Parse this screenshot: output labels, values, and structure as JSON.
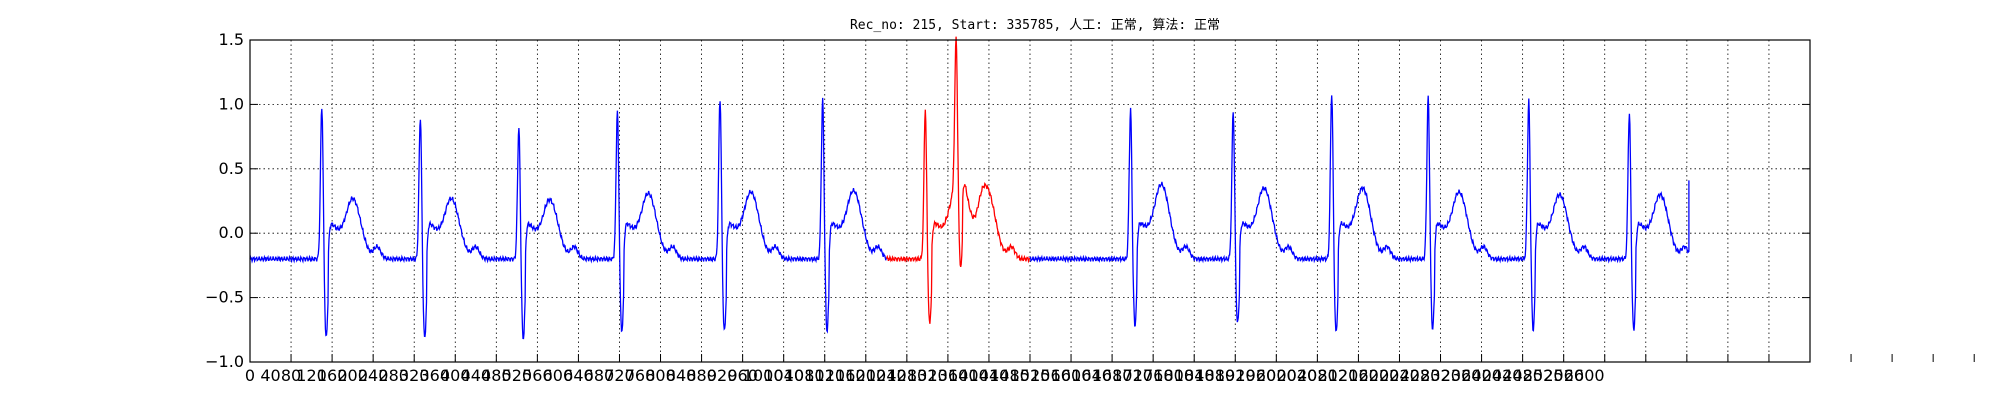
{
  "chart_data": {
    "type": "line",
    "title": "Rec_no: 215, Start: 335785, 人工: 正常, 算法: 正常",
    "xlabel": "",
    "ylabel": "",
    "xlim": [
      0,
      1520
    ],
    "ylim": [
      -1.0,
      1.5
    ],
    "grid": true,
    "grid_style": "dotted",
    "legend": "none",
    "yticks": [
      "1.5",
      "1.0",
      "0.5",
      "0.0",
      "−0.5",
      "−1.0"
    ],
    "ytick_values": [
      1.5,
      1.0,
      0.5,
      0.0,
      -0.5,
      -1.0
    ],
    "xticks": [
      "0",
      "40",
      "80",
      "120",
      "160",
      "200",
      "240",
      "280",
      "320",
      "360",
      "400",
      "440",
      "480",
      "520",
      "560",
      "600",
      "640",
      "680",
      "720",
      "760",
      "800",
      "840",
      "880",
      "920",
      "960",
      "1000",
      "1040",
      "1080",
      "1120",
      "1160",
      "1200",
      "1240",
      "1280",
      "1320",
      "1360",
      "1400",
      "1440",
      "1480",
      "1520",
      "1560",
      "1600",
      "1640",
      "1680",
      "1720",
      "1760",
      "1800",
      "1840",
      "1880",
      "1920",
      "1960",
      "2000",
      "2040",
      "2080",
      "2120",
      "2160",
      "2200",
      "2240",
      "2280",
      "2320",
      "2360",
      "2400",
      "2440",
      "2480",
      "2520",
      "2560",
      "2600"
    ],
    "xtick_values": [
      0,
      40,
      80,
      120,
      160,
      200,
      240,
      280,
      320,
      360,
      400,
      440,
      480,
      520,
      560,
      600,
      640,
      680,
      720,
      760,
      800,
      840,
      880,
      920,
      960,
      1000,
      1040,
      1080,
      1120,
      1160,
      1200,
      1240,
      1280,
      1320,
      1360,
      1400,
      1440,
      1480,
      1520,
      1560,
      1600,
      1640,
      1680,
      1720,
      1760,
      1800,
      1840,
      1880,
      1920,
      1960,
      2000,
      2040,
      2080,
      2120,
      2160,
      2200,
      2240,
      2280,
      2320,
      2360,
      2400,
      2440,
      2480,
      2520,
      2560,
      2600
    ],
    "series": [
      {
        "color": "#0000ff",
        "beats_r_peak_x": [
          70,
          166,
          262,
          358,
          458,
          558,
          658,
          858,
          958,
          1054,
          1148,
          1246,
          1344
        ],
        "r_peak_values": [
          1.0,
          0.92,
          0.85,
          0.97,
          1.06,
          1.06,
          0.98,
          0.98,
          0.97,
          1.1,
          1.08,
          1.05,
          0.95
        ],
        "s_trough_values": [
          -0.93,
          -0.94,
          -0.95,
          -0.87,
          -0.87,
          -0.87,
          -0.8,
          -0.82,
          -0.8,
          -0.88,
          -0.85,
          -0.86,
          -0.86
        ],
        "t_wave_values": [
          0.27,
          0.27,
          0.26,
          0.31,
          0.32,
          0.33,
          0.35,
          0.38,
          0.35,
          0.35,
          0.32,
          0.3,
          0.3
        ],
        "baseline": -0.2,
        "x_end": 1402,
        "y_end": 0.41
      },
      {
        "color": "#ff0000",
        "segment_x": [
          620,
          760
        ],
        "r_peak_x": 688,
        "r_peak_value": 1.0,
        "s_trough_value": -0.85,
        "t_wave_value": 0.34
      }
    ]
  }
}
